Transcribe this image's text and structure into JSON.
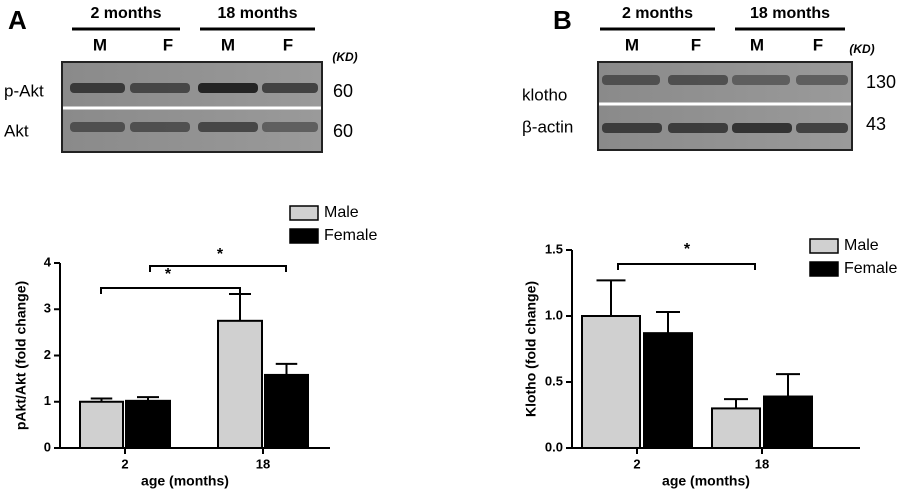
{
  "blots": [
    {
      "panel": "A",
      "groups": [
        "2 months",
        "18 months"
      ],
      "lanes": [
        "M",
        "F",
        "M",
        "F"
      ],
      "unit": "(KD)",
      "rows": [
        {
          "label": "p-Akt",
          "size": "60"
        },
        {
          "label": "Akt",
          "size": "60"
        }
      ]
    },
    {
      "panel": "B",
      "groups": [
        "2 months",
        "18 months"
      ],
      "lanes": [
        "M",
        "F",
        "M",
        "F"
      ],
      "unit": "(KD)",
      "rows": [
        {
          "label": "klotho",
          "size": "130"
        },
        {
          "label": "β-actin",
          "size": "43"
        }
      ]
    }
  ],
  "chart_data": [
    {
      "type": "bar",
      "y_label": "pAkt/Akt (fold change)",
      "x_label": "age (months)",
      "categories": [
        "2",
        "18"
      ],
      "series": [
        {
          "name": "Male",
          "color": "#d0d0d0",
          "values": [
            1.0,
            2.75
          ],
          "errors": [
            0.07,
            0.58
          ]
        },
        {
          "name": "Female",
          "color": "#000000",
          "values": [
            1.02,
            1.58
          ],
          "errors": [
            0.08,
            0.24
          ]
        }
      ],
      "ylim": [
        0,
        4
      ],
      "yticks": [
        0,
        1,
        2,
        3,
        4
      ],
      "annotations": [
        "*",
        "*"
      ]
    },
    {
      "type": "bar",
      "y_label": "Klotho (fold change)",
      "x_label": "age (months)",
      "categories": [
        "2",
        "18"
      ],
      "series": [
        {
          "name": "Male",
          "color": "#d0d0d0",
          "values": [
            1.0,
            0.3
          ],
          "errors": [
            0.27,
            0.07
          ]
        },
        {
          "name": "Female",
          "color": "#000000",
          "values": [
            0.87,
            0.39
          ],
          "errors": [
            0.16,
            0.17
          ]
        }
      ],
      "ylim": [
        0,
        1.5
      ],
      "yticks": [
        {
          "value": 0,
          "label": "0.0"
        },
        {
          "value": 0.5,
          "label": "0.5"
        },
        {
          "value": 1,
          "label": "1.0"
        },
        {
          "value": 1.5,
          "label": "1.5"
        }
      ],
      "annotations": [
        "*"
      ]
    }
  ]
}
